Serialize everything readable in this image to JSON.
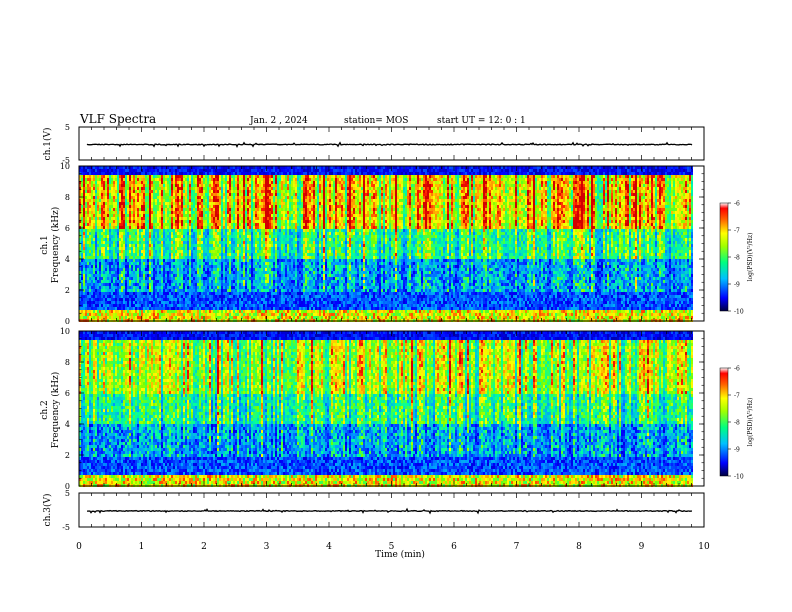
{
  "header": {
    "title": "VLF Spectra",
    "date": "Jan. 2 , 2024",
    "station": "station= MOS",
    "start_time": "start UT =  12: 0  : 1"
  },
  "colors": {
    "colormap": [
      "#000080",
      "#0000ff",
      "#0080ff",
      "#00e0ff",
      "#00ff80",
      "#80ff00",
      "#ffff00",
      "#ffa000",
      "#ff2000",
      "#e00000",
      "#ffffff"
    ]
  },
  "chart_data": [
    {
      "id": "ch1-waveform",
      "type": "line",
      "ylabel": "ch.1(V)",
      "ylim": [
        -5,
        5
      ],
      "yticks": [
        "5",
        "-5"
      ],
      "xlim": [
        0,
        10
      ],
      "series": [
        {
          "baseline": 0,
          "description_level": "near-zero trace"
        }
      ]
    },
    {
      "id": "ch1-spectrogram",
      "type": "heatmap",
      "ylabel_top": "ch.1",
      "ylabel": "Frequency (kHz)",
      "ylim": [
        0,
        10
      ],
      "yticks": [
        "0",
        "2",
        "4",
        "6",
        "8",
        "10"
      ],
      "xlim": [
        0,
        10
      ],
      "colorbar": {
        "label": "log(PSD)(V²/Hz)",
        "range": [
          -10,
          -6
        ],
        "ticks": [
          "-6",
          "-7",
          "-8",
          "-9",
          "-10"
        ]
      }
    },
    {
      "id": "ch2-spectrogram",
      "type": "heatmap",
      "ylabel_top": "ch.2",
      "ylabel": "Frequency (kHz)",
      "ylim": [
        0,
        10
      ],
      "yticks": [
        "0",
        "2",
        "4",
        "6",
        "8",
        "10"
      ],
      "xlim": [
        0,
        10
      ],
      "colorbar": {
        "label": "log(PSD)(V²/Hz)",
        "range": [
          -10,
          -6
        ],
        "ticks": [
          "-6",
          "-7",
          "-8",
          "-9",
          "-10"
        ]
      }
    },
    {
      "id": "ch3-waveform",
      "type": "line",
      "ylabel": "ch.3(V)",
      "ylim": [
        -5,
        5
      ],
      "yticks": [
        "5",
        "-5"
      ],
      "xlim": [
        0,
        10
      ],
      "series": [
        {
          "baseline": 0,
          "description_level": "near-zero trace"
        }
      ]
    }
  ],
  "x_axis": {
    "label": "Time (min)",
    "ticks": [
      "0",
      "1",
      "2",
      "3",
      "4",
      "5",
      "6",
      "7",
      "8",
      "9",
      "10"
    ],
    "range": [
      0,
      10
    ]
  }
}
